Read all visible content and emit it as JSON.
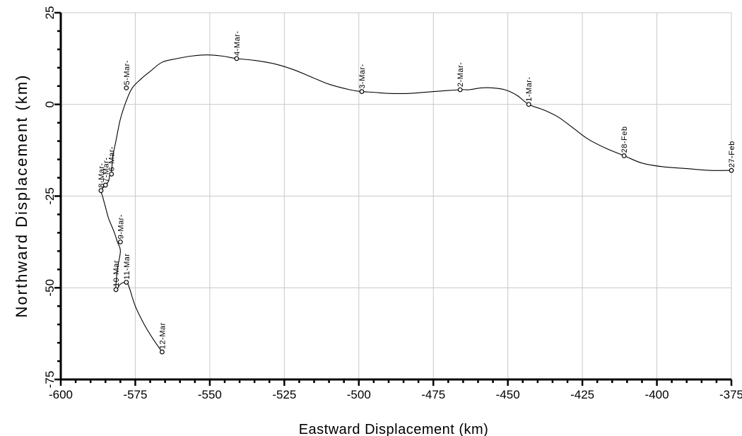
{
  "chart_data": {
    "type": "line",
    "title": "",
    "xlabel": "Eastward Displacement (km)",
    "ylabel": "Northward Displacement (km)",
    "xlim": [
      -600,
      -375
    ],
    "ylim": [
      -75,
      25
    ],
    "x_ticks": [
      -600,
      -575,
      -550,
      -525,
      -500,
      -475,
      -450,
      -425,
      -400,
      -375
    ],
    "y_ticks": [
      25,
      0,
      -25,
      -50,
      -75
    ],
    "x_tick_labels": [
      "-600",
      "-575",
      "-550",
      "-525",
      "-500",
      "-475",
      "-450",
      "-425",
      "-400",
      "-375"
    ],
    "y_tick_labels": [
      "25",
      "0",
      "-25",
      "-50",
      "-75"
    ],
    "grid": true,
    "legend": "none",
    "line_color": "#000000",
    "series": [
      {
        "x": [
          -375,
          -382,
          -390,
          -398,
          -405,
          -411,
          -417,
          -423,
          -428,
          -433,
          -438,
          -443,
          -447,
          -451,
          -455,
          -459,
          -463,
          -466,
          -475,
          -483,
          -490,
          -495,
          -499,
          -503,
          -510,
          -516,
          -522,
          -528,
          -535,
          -541,
          -546,
          -551,
          -556,
          -561,
          -566,
          -570,
          -573,
          -576,
          -578,
          -580,
          -581.5,
          -582.5,
          -583,
          -583.5,
          -584,
          -585,
          -586.5,
          -586,
          -585,
          -584,
          -583,
          -582,
          -581,
          -580,
          -581,
          -581.5,
          -580,
          -578,
          -577,
          -575,
          -572,
          -569,
          -566
        ],
        "y": [
          -18,
          -18,
          -17.5,
          -17,
          -16,
          -14,
          -12,
          -9.5,
          -6.5,
          -3.5,
          -1.5,
          0,
          2.5,
          4,
          4.5,
          4.5,
          4,
          4,
          3.5,
          3,
          3,
          3.3,
          3.5,
          4,
          5.5,
          7.5,
          9.5,
          11,
          12,
          12.5,
          13.2,
          13.5,
          13.2,
          12.5,
          11.5,
          9,
          7,
          4.5,
          1,
          -4,
          -10,
          -14,
          -18.5,
          -19,
          -21,
          -22,
          -23.5,
          -25,
          -28,
          -31,
          -33,
          -35,
          -37.5,
          -40,
          -45,
          -50.5,
          -49,
          -48.5,
          -50,
          -55,
          -60,
          -64,
          -67.5
        ]
      }
    ],
    "markers": [
      {
        "x": -375,
        "y": -18,
        "label": "27-Feb"
      },
      {
        "x": -411,
        "y": -14,
        "label": "28-Feb"
      },
      {
        "x": -443,
        "y": 0,
        "label": "1-Mar-"
      },
      {
        "x": -466,
        "y": 4,
        "label": "2-Mar-"
      },
      {
        "x": -499,
        "y": 3.5,
        "label": "3-Mar-"
      },
      {
        "x": -541,
        "y": 12.5,
        "label": "4-Mar-"
      },
      {
        "x": -578,
        "y": 4.5,
        "label": "5-Mar-"
      },
      {
        "x": -583,
        "y": -19,
        "label": "6-Mar-"
      },
      {
        "x": -585,
        "y": -22,
        "label": "7-Mar-"
      },
      {
        "x": -586.5,
        "y": -23.5,
        "label": "8-Mar-"
      },
      {
        "x": -580,
        "y": -37.5,
        "label": "9-Mar-"
      },
      {
        "x": -581.5,
        "y": -50.5,
        "label": "10-Mar"
      },
      {
        "x": -578,
        "y": -48.5,
        "label": "11-Mar"
      },
      {
        "x": -566,
        "y": -67.5,
        "label": "12-Mar"
      }
    ]
  }
}
